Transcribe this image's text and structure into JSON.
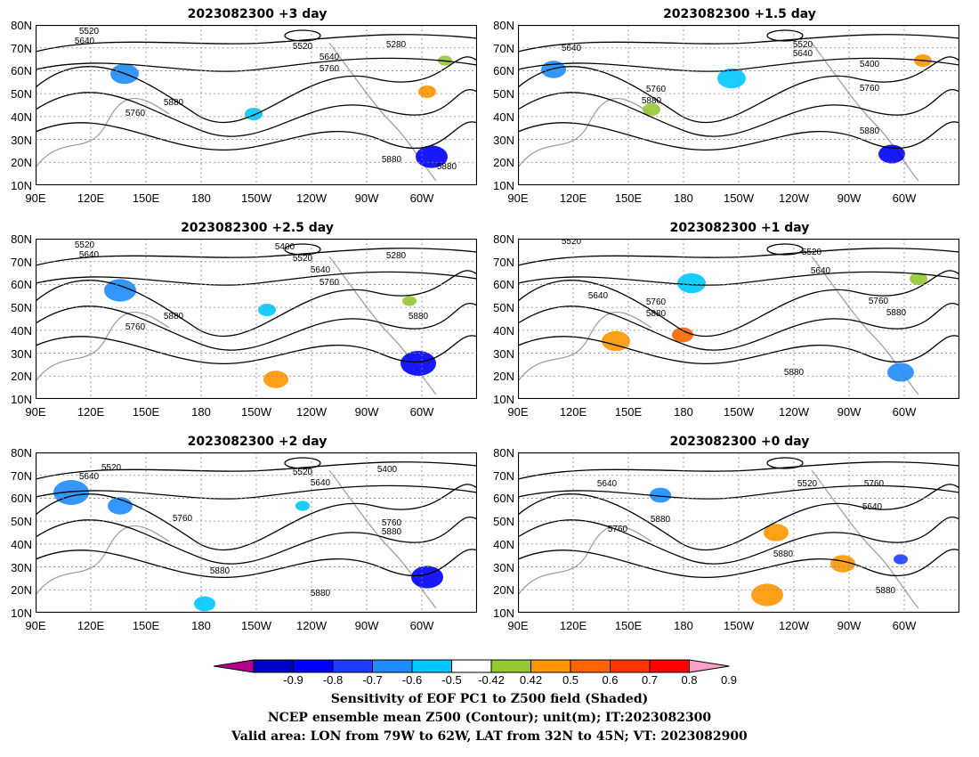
{
  "panels": [
    {
      "title": "2023082300 +3 day",
      "contour_labels": [
        "5520",
        "5640",
        "5520",
        "5640",
        "5280",
        "5760",
        "5880",
        "5760",
        "5880",
        "5880"
      ]
    },
    {
      "title": "2023082300 +1.5 day",
      "contour_labels": [
        "5640",
        "5520",
        "5640",
        "5400",
        "5760",
        "5880",
        "5760",
        "5880"
      ]
    },
    {
      "title": "2023082300 +2.5 day",
      "contour_labels": [
        "5520",
        "5640",
        "5400",
        "5520",
        "5280",
        "5640",
        "5760",
        "5880",
        "5760",
        "5880"
      ]
    },
    {
      "title": "2023082300 +1 day",
      "contour_labels": [
        "5520",
        "5520",
        "5640",
        "5640",
        "5760",
        "5880",
        "5760",
        "5880",
        "5880"
      ]
    },
    {
      "title": "2023082300 +2 day",
      "contour_labels": [
        "5640",
        "5520",
        "5520",
        "5640",
        "5400",
        "5760",
        "5760",
        "5880",
        "5880",
        "5880"
      ]
    },
    {
      "title": "2023082300 +0 day",
      "contour_labels": [
        "5640",
        "5520",
        "5760",
        "5640",
        "5760",
        "5880",
        "5880",
        "5880"
      ]
    }
  ],
  "lat_labels": [
    "80N",
    "70N",
    "60N",
    "50N",
    "40N",
    "30N",
    "20N",
    "10N"
  ],
  "lon_labels": [
    "90E",
    "120E",
    "150E",
    "180",
    "150W",
    "120W",
    "90W",
    "60W"
  ],
  "colorbar": {
    "labels": [
      "-0.9",
      "-0.8",
      "-0.7",
      "-0.6",
      "-0.5",
      "-0.42",
      "0.42",
      "0.5",
      "0.6",
      "0.7",
      "0.8",
      "0.9"
    ],
    "colors": [
      "#b4008c",
      "#0000c8",
      "#0000ff",
      "#1e3cff",
      "#1e8cff",
      "#00c8ff",
      "#ffffff",
      "#96c832",
      "#ff9600",
      "#ff6400",
      "#ff3200",
      "#ff0000",
      "#ffa0c8"
    ]
  },
  "caption": {
    "line1": "Sensitivity of EOF PC1 to Z500 field (Shaded)",
    "line2": "NCEP ensemble mean Z500 (Contour); unit(m); IT:2023082300",
    "line3": "Valid area: LON from 79W to 62W, LAT from 32N to 45N; VT: 2023082900"
  }
}
